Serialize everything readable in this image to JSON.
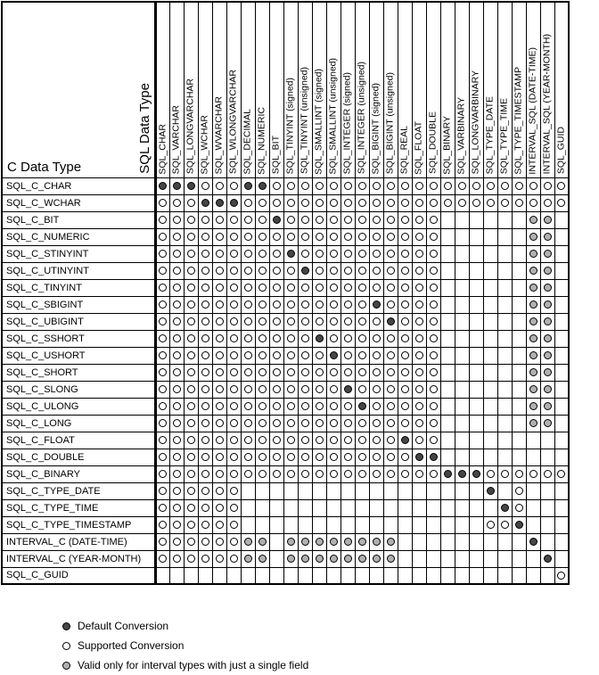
{
  "colors": {
    "default_fill": "#454545",
    "supported_fill": "#ffffff",
    "interval_fill": "#b0b0b0",
    "grid_border": "#000000",
    "background": "#ffffff"
  },
  "chart_data": {
    "type": "table",
    "row_axis_label": "C Data Type",
    "col_axis_label": "SQL Data Type",
    "cell_codes": {
      "D": "Default Conversion",
      "S": "Supported Conversion",
      "I": "Valid only for interval types with just a single field",
      ".": "no conversion"
    },
    "columns": [
      "SQL_CHAR",
      "SQL_VARCHAR",
      "SQL_LONGVARCHAR",
      "SQL_WCHAR",
      "SQL_WVARCHAR",
      "SQL_WLONGVARCHAR",
      "SQL_DECIMAL",
      "SQL_NUMERIC",
      "SQL_BIT",
      "SQL_TINYINT (signed)",
      "SQL_TINYINT (unsigned)",
      "SQL_SMALLINT (signed)",
      "SQL_SMALLINT (unsigned)",
      "SQL_INTEGER (signed)",
      "SQL_INTEGER (unsigned)",
      "SQL_BIGINT (signed)",
      "SQL_BIGINT (unsigned)",
      "SQL_REAL",
      "SQL_FLOAT",
      "SQL_DOUBLE",
      "SQL_BINARY",
      "SQL_VARBINARY",
      "SQL_LONGVARBINARY",
      "SQL_TYPE_DATE",
      "SQL_TYPE_TIME",
      "SQL_TYPE_TIMESTAMP",
      "INTERVAL_SQL (DATE-TIME)",
      "INTERVAL_SQL (YEAR-MONTH)",
      "SQL_GUID"
    ],
    "rows": [
      {
        "label": "SQL_C_CHAR",
        "cells": "DDDSSSDDSSSSSSSSSSSSSSSSSSSSS"
      },
      {
        "label": "SQL_C_WCHAR",
        "cells": "SSSDDDSSSSSSSSSSSSSSSSSSSSSSS"
      },
      {
        "label": "SQL_C_BIT",
        "cells": "SSSSSSSSDSSSSSSSSSSS......II."
      },
      {
        "label": "SQL_C_NUMERIC",
        "cells": "SSSSSSSSSSSSSSSSSSSS......II."
      },
      {
        "label": "SQL_C_STINYINT",
        "cells": "SSSSSSSSSDSSSSSSSSSS......II."
      },
      {
        "label": "SQL_C_UTINYINT",
        "cells": "SSSSSSSSSSDSSSSSSSSS......II."
      },
      {
        "label": "SQL_C_TINYINT",
        "cells": "SSSSSSSSSSSSSSSSSSSS......II."
      },
      {
        "label": "SQL_C_SBIGINT",
        "cells": "SSSSSSSSSSSSSSSDSSSS......II."
      },
      {
        "label": "SQL_C_UBIGINT",
        "cells": "SSSSSSSSSSSSSSSSDSSS......II."
      },
      {
        "label": "SQL_C_SSHORT",
        "cells": "SSSSSSSSSSSDSSSSSSSS......II."
      },
      {
        "label": "SQL_C_USHORT",
        "cells": "SSSSSSSSSSSSDSSSSSSS......II."
      },
      {
        "label": "SQL_C_SHORT",
        "cells": "SSSSSSSSSSSSSSSSSSSS......II."
      },
      {
        "label": "SQL_C_SLONG",
        "cells": "SSSSSSSSSSSSSDSSSSSS......II."
      },
      {
        "label": "SQL_C_ULONG",
        "cells": "SSSSSSSSSSSSSSDSSSSS......II."
      },
      {
        "label": "SQL_C_LONG",
        "cells": "SSSSSSSSSSSSSSSSSSSS......II."
      },
      {
        "label": "SQL_C_FLOAT",
        "cells": "SSSSSSSSSSSSSSSSSDSS........."
      },
      {
        "label": "SQL_C_DOUBLE",
        "cells": "SSSSSSSSSSSSSSSSSSDD........."
      },
      {
        "label": "SQL_C_BINARY",
        "cells": "SSSSSSSSSSSSSSSSSSSSDDDSSSSSS"
      },
      {
        "label": "SQL_C_TYPE_DATE",
        "cells": "SSSSSS.................D.S..."
      },
      {
        "label": "SQL_C_TYPE_TIME",
        "cells": "SSSSSS..................DS..."
      },
      {
        "label": "SQL_C_TYPE_TIMESTAMP",
        "cells": "SSSSSS.................SSD..."
      },
      {
        "label": "INTERVAL_C (DATE-TIME)",
        "cells": "SSSSSSII.IIIIIIII.........D.."
      },
      {
        "label": "INTERVAL_C (YEAR-MONTH)",
        "cells": "SSSSSSII.IIIIIIII..........D."
      },
      {
        "label": "SQL_C_GUID",
        "cells": "............................S"
      }
    ]
  },
  "legend": {
    "items": [
      {
        "code": "D",
        "label": "Default Conversion"
      },
      {
        "code": "S",
        "label": "Supported Conversion"
      },
      {
        "code": "I",
        "label": "Valid only for interval types with just a single field"
      }
    ]
  }
}
